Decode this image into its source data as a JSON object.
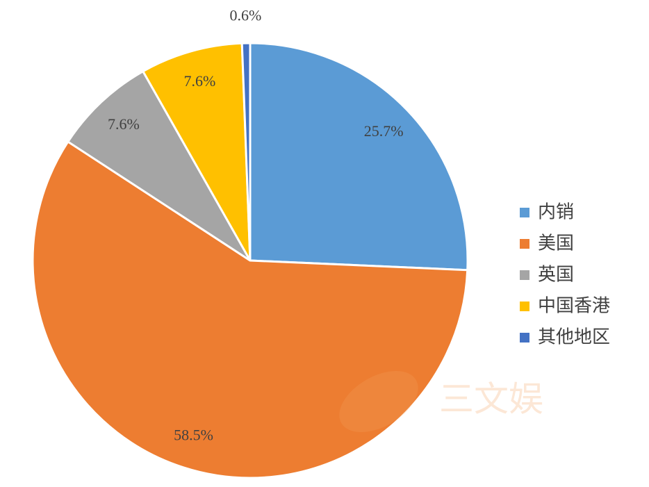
{
  "chart_data": {
    "type": "pie",
    "categories": [
      "内销",
      "美国",
      "英国",
      "中国香港",
      "其他地区"
    ],
    "values": [
      25.7,
      58.5,
      7.6,
      7.6,
      0.6
    ],
    "value_labels": [
      "25.7%",
      "58.5%",
      "7.6%",
      "7.6%",
      "0.6%"
    ],
    "colors": [
      "#5b9bd5",
      "#ed7d31",
      "#a5a5a5",
      "#ffc000",
      "#4472c4"
    ],
    "legend": "right",
    "watermark": "三文娱"
  }
}
